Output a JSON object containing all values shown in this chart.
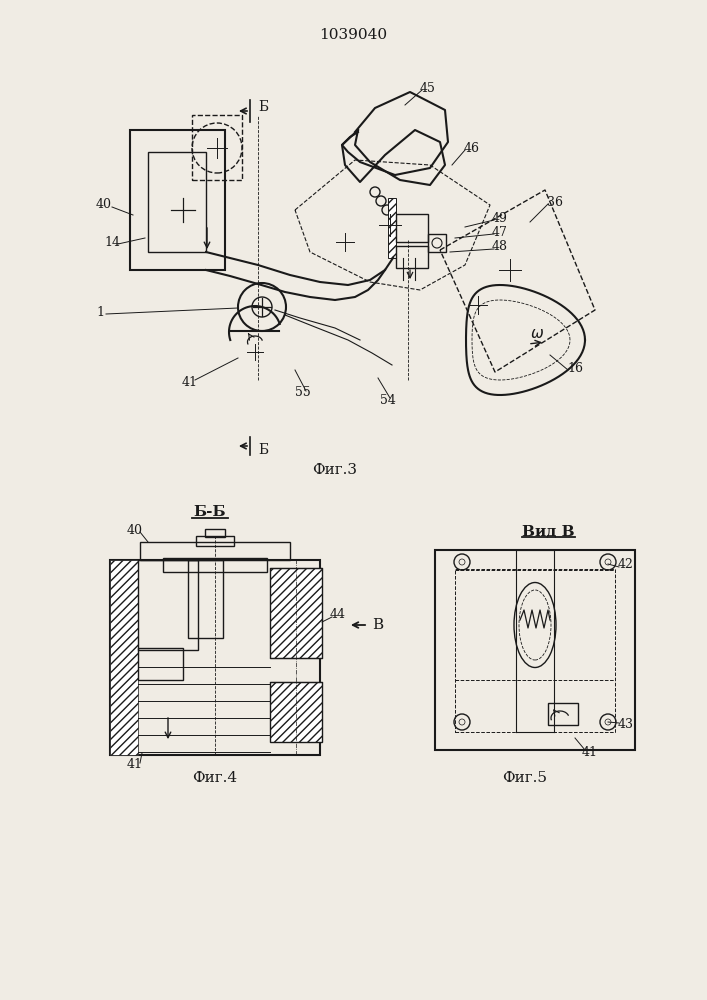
{
  "patent_number": "1039040",
  "fig3_label": "Фиг.3",
  "fig4_label": "Фиг.4",
  "fig5_label": "Фиг.5",
  "section_label": "Б-Б",
  "view_label": "Вид В",
  "bg_color": "#f0ece4",
  "line_color": "#1a1a1a"
}
